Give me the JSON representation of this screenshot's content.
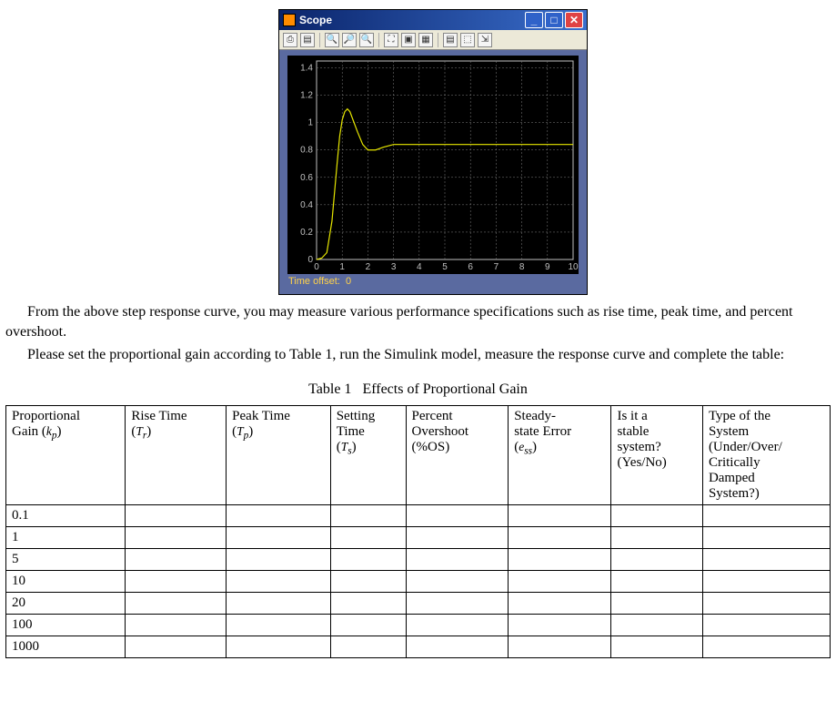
{
  "scope": {
    "title": "Scope",
    "titlebar_gradient_start": "#0a246a",
    "titlebar_gradient_end": "#3a6ecc",
    "close_btn_bg": "#e04343",
    "minmax_btn_bg": "#2f62c9",
    "toolbar_icons": [
      "⎙",
      "▤",
      "🔍",
      "🔎",
      "🔍",
      "⛶",
      "▣",
      "▦",
      "▤",
      "⬚",
      "⇲"
    ],
    "plot": {
      "type": "line",
      "background_color": "#000000",
      "axis_color": "#c0c0c0",
      "grid_color": "#808080",
      "line_color": "#e6e600",
      "line_width": 1.2,
      "xlim": [
        0,
        10
      ],
      "ylim": [
        0,
        1.45
      ],
      "xticks": [
        0,
        1,
        2,
        3,
        4,
        5,
        6,
        7,
        8,
        9,
        10
      ],
      "yticks": [
        0,
        0.2,
        0.4,
        0.6,
        0.8,
        1,
        1.2,
        1.4
      ],
      "ytick_labels": [
        "0",
        "0.2",
        "0.4",
        "0.6",
        "0.8",
        "1",
        "1.2",
        "1.4"
      ],
      "tick_fontsize": 10,
      "tick_color": "#c0c0c0",
      "grid_dash": "2,2",
      "series_x": [
        0,
        0.2,
        0.4,
        0.6,
        0.8,
        0.9,
        1.0,
        1.1,
        1.2,
        1.3,
        1.4,
        1.6,
        1.8,
        2.0,
        2.3,
        2.6,
        3.0,
        3.5,
        4.0,
        5.0,
        6.0,
        8.0,
        10.0
      ],
      "series_y": [
        0,
        0.01,
        0.05,
        0.28,
        0.7,
        0.9,
        1.02,
        1.08,
        1.1,
        1.08,
        1.03,
        0.93,
        0.84,
        0.8,
        0.8,
        0.82,
        0.84,
        0.84,
        0.84,
        0.84,
        0.84,
        0.84,
        0.84
      ]
    },
    "time_offset_label": "Time offset:",
    "time_offset_value": "0",
    "body_bg": "#5a6aa0"
  },
  "paragraph1": "From the above step response curve, you may measure various performance specifications such as rise time, peak time, and percent overshoot.",
  "paragraph2": "Please set the proportional gain according to Table 1, run the Simulink model, measure the response curve and complete the table:",
  "table": {
    "caption_prefix": "Table 1",
    "caption_text": "Effects of Proportional Gain",
    "headers": {
      "c0_l1": "Proportional",
      "c0_l2a": "Gain (",
      "c0_sym": "k",
      "c0_sub": "p",
      "c0_l2b": ")",
      "c1_l1": "Rise Time",
      "c1_l2a": "(",
      "c1_sym": "T",
      "c1_sub": "r",
      "c1_l2b": ")",
      "c2_l1": "Peak Time",
      "c2_l2a": "(",
      "c2_sym": "T",
      "c2_sub": "p",
      "c2_l2b": ")",
      "c3_l1": "Setting",
      "c3_l2": "Time",
      "c3_l3a": "(",
      "c3_sym": "T",
      "c3_sub": "s",
      "c3_l3b": ")",
      "c4_l1": "Percent",
      "c4_l2": "Overshoot",
      "c4_l3": "(%OS)",
      "c5_l1": "Steady-",
      "c5_l2": "state Error",
      "c5_l3a": "(",
      "c5_sym": "e",
      "c5_sub": "ss",
      "c5_l3b": ")",
      "c6_l1": "Is it a",
      "c6_l2": "stable",
      "c6_l3": "system?",
      "c6_l4": "(Yes/No)",
      "c7_l1": "Type of the",
      "c7_l2": "System",
      "c7_l3": "(Under/Over/",
      "c7_l4": "Critically",
      "c7_l5": "Damped",
      "c7_l6": "System?)"
    },
    "row_labels": [
      "0.1",
      "1",
      "5",
      "10",
      "20",
      "100",
      "1000"
    ],
    "num_cols": 8
  }
}
